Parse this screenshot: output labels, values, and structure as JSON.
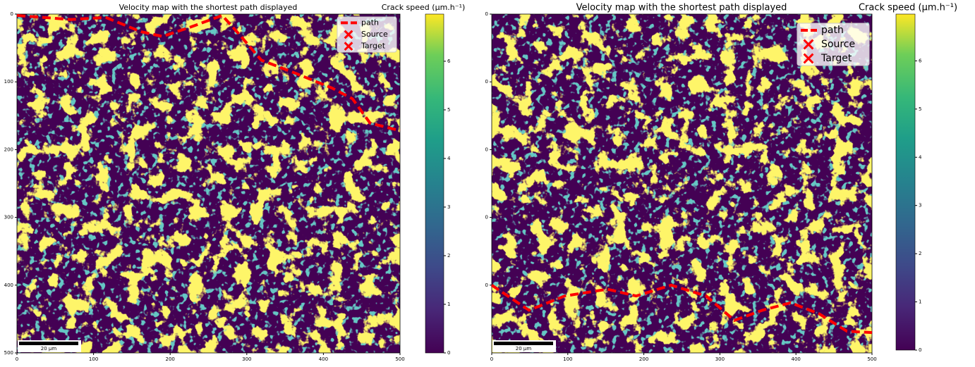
{
  "chart_data": [
    {
      "type": "heatmap",
      "title": "Velocity map with the shortest path displayed",
      "colorbar_label": "Crack speed (μm.h⁻¹)",
      "colormap": "viridis",
      "xlim": [
        0,
        500
      ],
      "ylim": [
        500,
        0
      ],
      "clim": [
        0,
        6.97
      ],
      "xticks": [
        0,
        100,
        200,
        300,
        400,
        500
      ],
      "yticks": [
        0,
        100,
        200,
        300,
        400,
        500
      ],
      "cticks": [
        0,
        1,
        2,
        3,
        4,
        5,
        6
      ],
      "series": [
        {
          "name": "path",
          "color": "#ff0000",
          "x": [
            0,
            70,
            116,
            162,
            190,
            227,
            268,
            291,
            319,
            365,
            411,
            438,
            461,
            500
          ],
          "y": [
            2,
            8,
            5,
            26,
            33,
            19,
            2,
            31,
            68,
            88,
            109,
            125,
            161,
            172
          ]
        }
      ],
      "markers": [
        {
          "name": "Source",
          "color": "#ff0000"
        },
        {
          "name": "Target",
          "color": "#ff0000"
        }
      ],
      "legend": "upper right",
      "scale_bar_label": "20 μm"
    },
    {
      "type": "heatmap",
      "title": "Velocity map with the shortest path displayed",
      "colorbar_label": "Crack speed (μm.h⁻¹)",
      "colormap": "viridis",
      "xlim": [
        0,
        500
      ],
      "ylim": [
        500,
        0
      ],
      "clim": [
        0,
        6.97
      ],
      "xticks": [
        0,
        100,
        200,
        300,
        400,
        500
      ],
      "yticks": [
        0,
        {
          "value": 100,
          "label": "0"
        },
        {
          "value": 200,
          "label": "0"
        },
        {
          "value": 300,
          "label": "0"
        },
        {
          "value": 400,
          "label": "0"
        }
      ],
      "cticks": [
        0,
        1,
        2,
        3,
        4,
        5,
        6
      ],
      "series": [
        {
          "name": "path",
          "color": "#ff0000",
          "x": [
            0,
            49,
            96,
            152,
            190,
            236,
            282,
            319,
            356,
            393,
            430,
            467,
            500
          ],
          "y": [
            400,
            437,
            416,
            406,
            416,
            400,
            416,
            452,
            437,
            426,
            442,
            468,
            470
          ]
        }
      ],
      "markers": [
        {
          "name": "Source",
          "color": "#ff0000"
        },
        {
          "name": "Target",
          "color": "#ff0000"
        }
      ],
      "legend": "upper right",
      "scale_bar_label": "20 μm"
    }
  ]
}
